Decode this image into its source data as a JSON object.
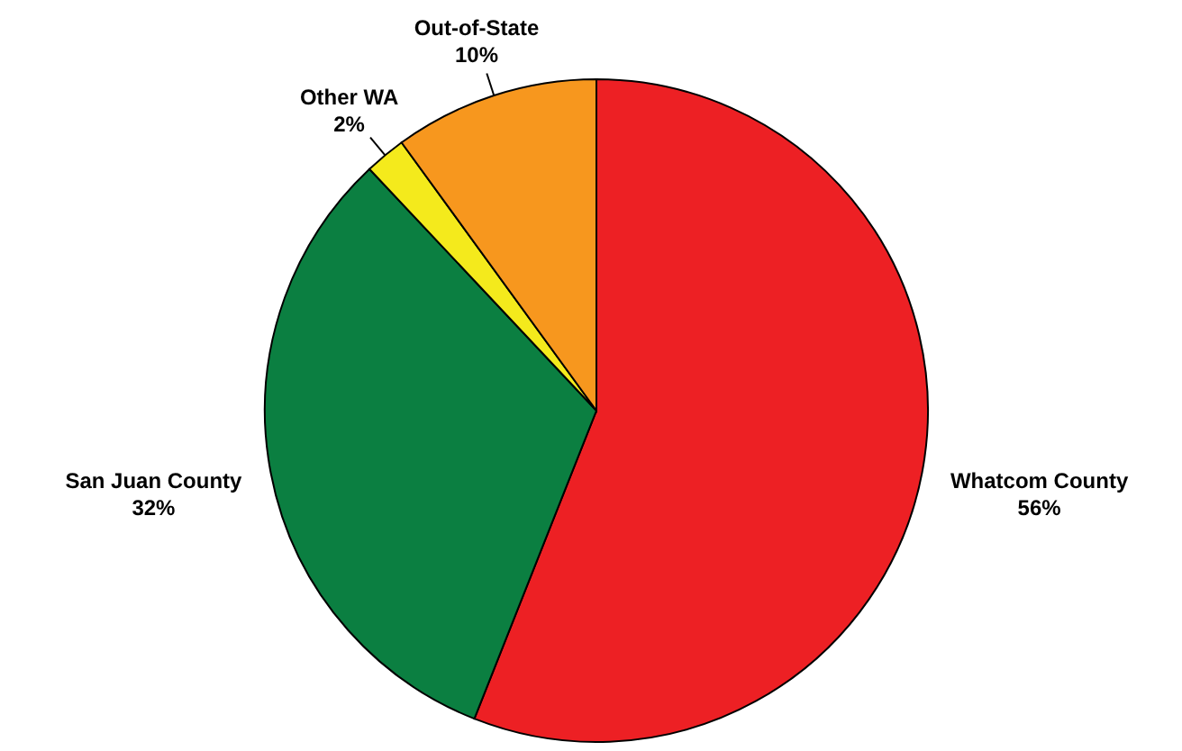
{
  "chart_data": {
    "type": "pie",
    "categories": [
      "Whatcom County",
      "San Juan County",
      "Other WA",
      "Out-of-State"
    ],
    "values": [
      56,
      32,
      2,
      10
    ],
    "colors": [
      "#ed2024",
      "#0b7f41",
      "#f4ea1c",
      "#f7971e"
    ],
    "value_labels": [
      "56%",
      "32%",
      "2%",
      "10%"
    ]
  }
}
